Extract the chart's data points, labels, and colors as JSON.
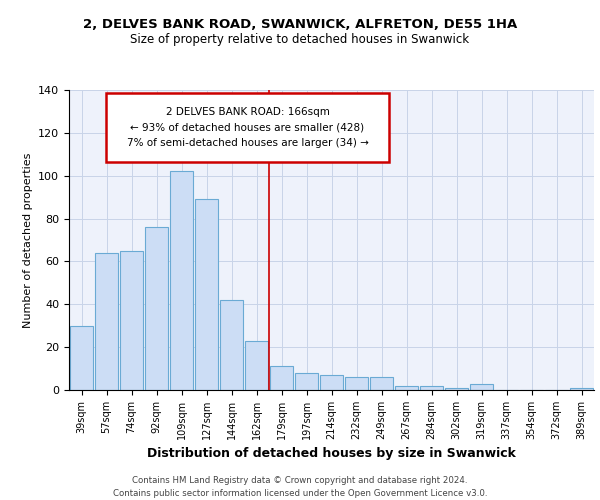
{
  "title1": "2, DELVES BANK ROAD, SWANWICK, ALFRETON, DE55 1HA",
  "title2": "Size of property relative to detached houses in Swanwick",
  "xlabel": "Distribution of detached houses by size in Swanwick",
  "ylabel": "Number of detached properties",
  "categories": [
    "39sqm",
    "57sqm",
    "74sqm",
    "92sqm",
    "109sqm",
    "127sqm",
    "144sqm",
    "162sqm",
    "179sqm",
    "197sqm",
    "214sqm",
    "232sqm",
    "249sqm",
    "267sqm",
    "284sqm",
    "302sqm",
    "319sqm",
    "337sqm",
    "354sqm",
    "372sqm",
    "389sqm"
  ],
  "values": [
    30,
    64,
    65,
    76,
    102,
    89,
    42,
    23,
    11,
    8,
    7,
    6,
    6,
    2,
    2,
    1,
    3,
    0,
    0,
    0,
    1
  ],
  "bar_color": "#ccddf5",
  "bar_edge_color": "#6aaad4",
  "grid_color": "#c8d4e8",
  "bg_color": "#eef2fb",
  "vline_color": "#cc0000",
  "annotation_text": "2 DELVES BANK ROAD: 166sqm\n← 93% of detached houses are smaller (428)\n7% of semi-detached houses are larger (34) →",
  "annotation_box_color": "#cc0000",
  "footer_text": "Contains HM Land Registry data © Crown copyright and database right 2024.\nContains public sector information licensed under the Open Government Licence v3.0.",
  "ylim": [
    0,
    140
  ],
  "yticks": [
    0,
    20,
    40,
    60,
    80,
    100,
    120,
    140
  ]
}
